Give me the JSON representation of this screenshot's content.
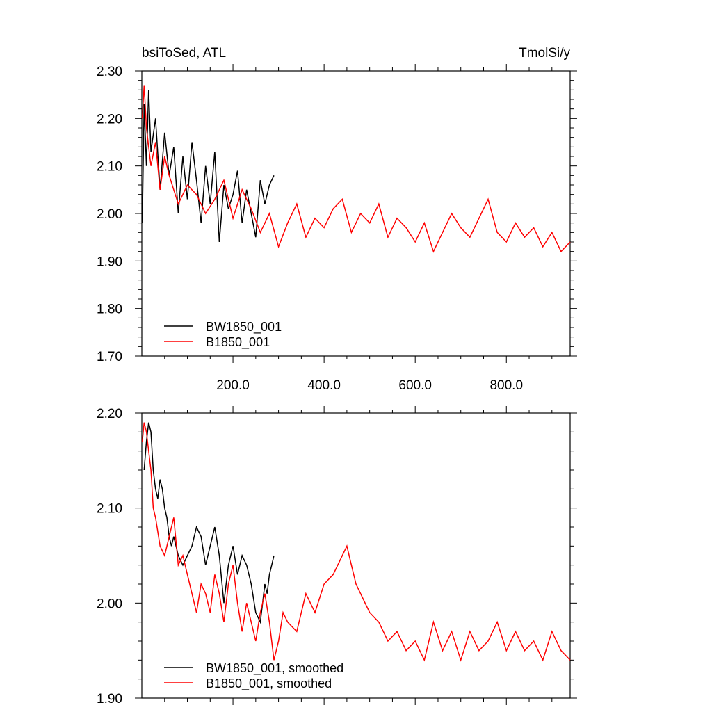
{
  "chart_data": [
    {
      "type": "line",
      "title_left": "bsiToSed, ATL",
      "title_right": "TmolSi/y",
      "xlabel": "",
      "ylabel": "",
      "xlim": [
        0,
        940
      ],
      "ylim": [
        1.7,
        2.3
      ],
      "x_ticks": [
        200,
        400,
        600,
        800
      ],
      "x_tick_labels": [
        "200.0",
        "400.0",
        "600.0",
        "800.0"
      ],
      "y_ticks": [
        1.7,
        1.8,
        1.9,
        2.0,
        2.1,
        2.2,
        2.3
      ],
      "y_tick_labels": [
        "1.70",
        "1.80",
        "1.90",
        "2.00",
        "2.10",
        "2.20",
        "2.30"
      ],
      "legend": "bottom-left",
      "series": [
        {
          "name": "BW1850_001",
          "color": "#000000",
          "x": [
            1,
            5,
            10,
            15,
            20,
            30,
            40,
            50,
            60,
            70,
            80,
            90,
            100,
            110,
            120,
            130,
            140,
            150,
            160,
            170,
            180,
            190,
            200,
            210,
            220,
            230,
            240,
            250,
            260,
            270,
            280,
            290
          ],
          "values": [
            1.98,
            2.23,
            2.1,
            2.26,
            2.13,
            2.2,
            2.05,
            2.17,
            2.08,
            2.14,
            2.0,
            2.12,
            2.03,
            2.15,
            2.07,
            1.98,
            2.1,
            2.02,
            2.13,
            1.94,
            2.06,
            2.01,
            2.04,
            2.09,
            1.98,
            2.05,
            2.0,
            1.95,
            2.07,
            2.02,
            2.06,
            2.08
          ]
        },
        {
          "name": "B1850_001",
          "color": "#ff0000",
          "x": [
            1,
            5,
            10,
            20,
            30,
            40,
            50,
            60,
            80,
            100,
            120,
            140,
            160,
            180,
            200,
            220,
            240,
            260,
            280,
            300,
            320,
            340,
            360,
            380,
            400,
            420,
            440,
            460,
            480,
            500,
            520,
            540,
            560,
            580,
            600,
            620,
            640,
            660,
            680,
            700,
            720,
            740,
            760,
            780,
            800,
            820,
            840,
            860,
            880,
            900,
            920,
            940
          ],
          "values": [
            2.2,
            2.27,
            2.18,
            2.1,
            2.15,
            2.05,
            2.12,
            2.08,
            2.02,
            2.06,
            2.04,
            2.0,
            2.03,
            2.07,
            1.99,
            2.05,
            2.01,
            1.96,
            2.0,
            1.93,
            1.98,
            2.02,
            1.95,
            1.99,
            1.97,
            2.01,
            2.03,
            1.96,
            2.0,
            1.98,
            2.02,
            1.95,
            1.99,
            1.97,
            1.94,
            1.98,
            1.92,
            1.96,
            2.0,
            1.97,
            1.95,
            1.99,
            2.03,
            1.96,
            1.94,
            1.98,
            1.95,
            1.97,
            1.93,
            1.96,
            1.92,
            1.94
          ]
        }
      ]
    },
    {
      "type": "line",
      "title_left": "",
      "title_right": "",
      "xlabel": "",
      "ylabel": "",
      "xlim": [
        0,
        940
      ],
      "ylim": [
        1.9,
        2.2
      ],
      "x_ticks": [
        200,
        400,
        600,
        800
      ],
      "x_tick_labels": [],
      "y_ticks": [
        1.9,
        2.0,
        2.1,
        2.2
      ],
      "y_tick_labels": [
        "1.90",
        "2.00",
        "2.10",
        "2.20"
      ],
      "legend": "bottom-left",
      "series": [
        {
          "name": "BW1850_001, smoothed",
          "color": "#000000",
          "x": [
            5,
            10,
            15,
            20,
            25,
            30,
            35,
            40,
            45,
            50,
            55,
            60,
            65,
            70,
            80,
            90,
            100,
            110,
            120,
            130,
            140,
            150,
            160,
            170,
            180,
            190,
            200,
            210,
            220,
            230,
            240,
            250,
            260,
            265,
            270,
            275,
            280,
            285,
            290
          ],
          "values": [
            2.14,
            2.17,
            2.19,
            2.18,
            2.14,
            2.12,
            2.11,
            2.13,
            2.12,
            2.1,
            2.09,
            2.07,
            2.06,
            2.07,
            2.05,
            2.04,
            2.05,
            2.06,
            2.08,
            2.07,
            2.04,
            2.06,
            2.08,
            2.05,
            2.0,
            2.04,
            2.06,
            2.03,
            2.05,
            2.04,
            2.02,
            1.99,
            1.98,
            2.0,
            2.02,
            2.01,
            2.03,
            2.04,
            2.05
          ]
        },
        {
          "name": "B1850_001, smoothed",
          "color": "#ff0000",
          "x": [
            1,
            5,
            10,
            15,
            20,
            25,
            30,
            40,
            50,
            60,
            70,
            80,
            90,
            100,
            110,
            120,
            130,
            140,
            150,
            160,
            170,
            180,
            190,
            200,
            210,
            220,
            230,
            240,
            250,
            260,
            270,
            280,
            290,
            300,
            310,
            320,
            340,
            360,
            380,
            400,
            420,
            440,
            450,
            460,
            470,
            480,
            490,
            500,
            520,
            540,
            560,
            580,
            600,
            620,
            640,
            660,
            680,
            700,
            720,
            740,
            760,
            780,
            800,
            820,
            840,
            860,
            880,
            900,
            920,
            940
          ],
          "values": [
            2.17,
            2.19,
            2.18,
            2.16,
            2.14,
            2.1,
            2.09,
            2.06,
            2.05,
            2.07,
            2.09,
            2.04,
            2.05,
            2.03,
            2.01,
            1.99,
            2.02,
            2.01,
            1.99,
            2.03,
            2.01,
            1.98,
            2.02,
            2.04,
            2.0,
            1.97,
            2.0,
            1.98,
            1.96,
            1.99,
            2.01,
            1.98,
            1.94,
            1.96,
            1.99,
            1.98,
            1.97,
            2.01,
            1.99,
            2.02,
            2.03,
            2.05,
            2.06,
            2.04,
            2.02,
            2.01,
            2.0,
            1.99,
            1.98,
            1.96,
            1.97,
            1.95,
            1.96,
            1.94,
            1.98,
            1.95,
            1.97,
            1.94,
            1.97,
            1.95,
            1.96,
            1.98,
            1.95,
            1.97,
            1.95,
            1.96,
            1.94,
            1.97,
            1.95,
            1.94
          ]
        }
      ]
    }
  ]
}
